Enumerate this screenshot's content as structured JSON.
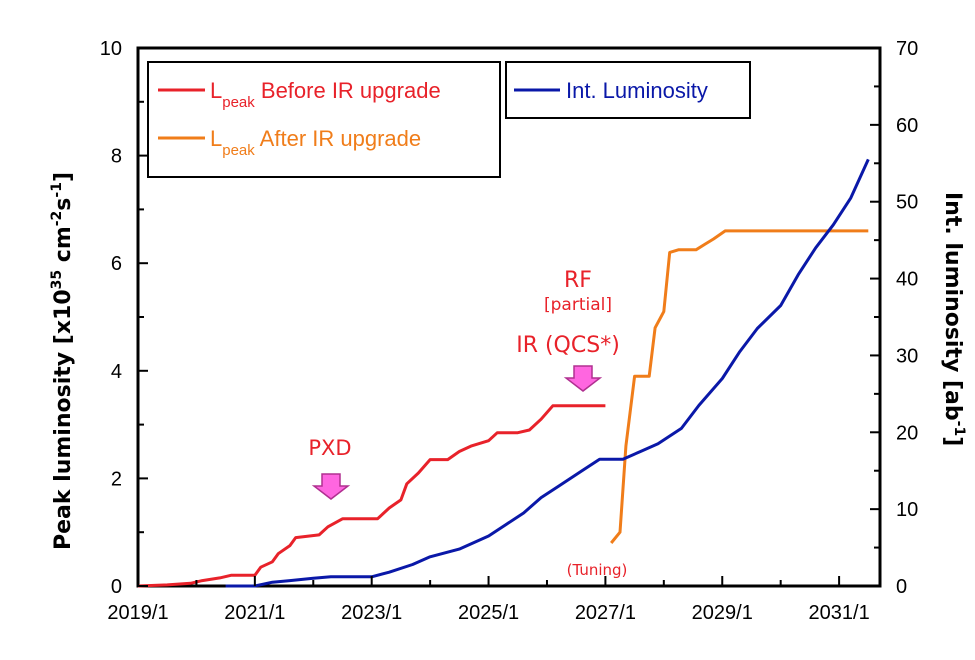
{
  "chart_data": {
    "type": "line",
    "x_ticks": [
      "2019/1",
      "2021/1",
      "2023/1",
      "2025/1",
      "2027/1",
      "2029/1",
      "2031/1"
    ],
    "y_left": {
      "label_main": "Peak luminosity [x10",
      "label_exp1": "35",
      "label_mid": " cm",
      "label_exp2": "-2",
      "label_s": "s",
      "label_exp3": "-1",
      "label_end": "]",
      "lim": [
        0,
        10
      ],
      "ticks": [
        "0",
        "2",
        "4",
        "6",
        "8",
        "10"
      ]
    },
    "y_right": {
      "label_main": "Int. luminosity [ab",
      "label_exp": "-1",
      "label_end": "]",
      "lim": [
        0,
        70
      ],
      "ticks": [
        "0",
        "10",
        "20",
        "30",
        "40",
        "50",
        "60",
        "70"
      ]
    },
    "legend": {
      "before": {
        "main": "L",
        "sub": "peak",
        "rest": " Before IR upgrade"
      },
      "after": {
        "main": "L",
        "sub": "peak",
        "rest": " After IR upgrade"
      },
      "int": "Int. Luminosity"
    },
    "colors": {
      "before": "#e8222a",
      "after": "#f07d1a",
      "int": "#0a18a8",
      "arrow": "#ff66e0",
      "annotation": "#e8222a"
    },
    "annotations": {
      "pxd": "PXD",
      "rf": "RF",
      "rf_partial": "[partial]",
      "ir": "IR (QCS*)",
      "tuning": "(Tuning)"
    },
    "series": [
      {
        "name": "Lpeak Before IR upgrade",
        "axis": "left",
        "points": [
          [
            2019.0,
            0
          ],
          [
            2019.5,
            0.02
          ],
          [
            2019.9,
            0.05
          ],
          [
            2020.1,
            0.1
          ],
          [
            2020.4,
            0.15
          ],
          [
            2020.6,
            0.2
          ],
          [
            2021.0,
            0.2
          ],
          [
            2021.1,
            0.35
          ],
          [
            2021.3,
            0.45
          ],
          [
            2021.4,
            0.6
          ],
          [
            2021.6,
            0.75
          ],
          [
            2021.7,
            0.9
          ],
          [
            2022.1,
            0.95
          ],
          [
            2022.25,
            1.1
          ],
          [
            2022.5,
            1.25
          ],
          [
            2023.1,
            1.25
          ],
          [
            2023.3,
            1.45
          ],
          [
            2023.5,
            1.6
          ],
          [
            2023.6,
            1.9
          ],
          [
            2023.8,
            2.1
          ],
          [
            2024.0,
            2.35
          ],
          [
            2024.3,
            2.35
          ],
          [
            2024.5,
            2.5
          ],
          [
            2024.7,
            2.6
          ],
          [
            2025.0,
            2.7
          ],
          [
            2025.15,
            2.85
          ],
          [
            2025.5,
            2.85
          ],
          [
            2025.7,
            2.9
          ],
          [
            2025.9,
            3.1
          ],
          [
            2026.1,
            3.35
          ],
          [
            2027.0,
            3.35
          ]
        ]
      },
      {
        "name": "Lpeak After IR upgrade",
        "axis": "left",
        "points": [
          [
            2027.1,
            0.8
          ],
          [
            2027.25,
            1.0
          ],
          [
            2027.35,
            2.6
          ],
          [
            2027.5,
            3.9
          ],
          [
            2027.75,
            3.9
          ],
          [
            2027.85,
            4.8
          ],
          [
            2027.95,
            5.0
          ],
          [
            2028.0,
            5.1
          ],
          [
            2028.1,
            6.2
          ],
          [
            2028.25,
            6.25
          ],
          [
            2028.55,
            6.25
          ],
          [
            2028.7,
            6.35
          ],
          [
            2028.85,
            6.45
          ],
          [
            2029.05,
            6.6
          ],
          [
            2031.5,
            6.6
          ]
        ]
      },
      {
        "name": "Int. Luminosity",
        "axis": "right",
        "points": [
          [
            2020.5,
            0
          ],
          [
            2021.0,
            0
          ],
          [
            2021.3,
            0.5
          ],
          [
            2021.6,
            0.7
          ],
          [
            2022.0,
            1.0
          ],
          [
            2022.3,
            1.2
          ],
          [
            2023.0,
            1.2
          ],
          [
            2023.3,
            1.8
          ],
          [
            2023.7,
            2.8
          ],
          [
            2024.0,
            3.8
          ],
          [
            2024.5,
            4.8
          ],
          [
            2025.0,
            6.5
          ],
          [
            2025.3,
            8.0
          ],
          [
            2025.6,
            9.5
          ],
          [
            2025.9,
            11.5
          ],
          [
            2026.2,
            13.0
          ],
          [
            2026.6,
            15.0
          ],
          [
            2026.9,
            16.5
          ],
          [
            2027.3,
            16.5
          ],
          [
            2027.6,
            17.5
          ],
          [
            2027.9,
            18.5
          ],
          [
            2028.3,
            20.5
          ],
          [
            2028.6,
            23.5
          ],
          [
            2029.0,
            27.0
          ],
          [
            2029.3,
            30.5
          ],
          [
            2029.6,
            33.5
          ],
          [
            2030.0,
            36.5
          ],
          [
            2030.3,
            40.5
          ],
          [
            2030.6,
            44.0
          ],
          [
            2030.9,
            47.0
          ],
          [
            2031.2,
            50.5
          ],
          [
            2031.5,
            55.5
          ]
        ]
      }
    ]
  }
}
